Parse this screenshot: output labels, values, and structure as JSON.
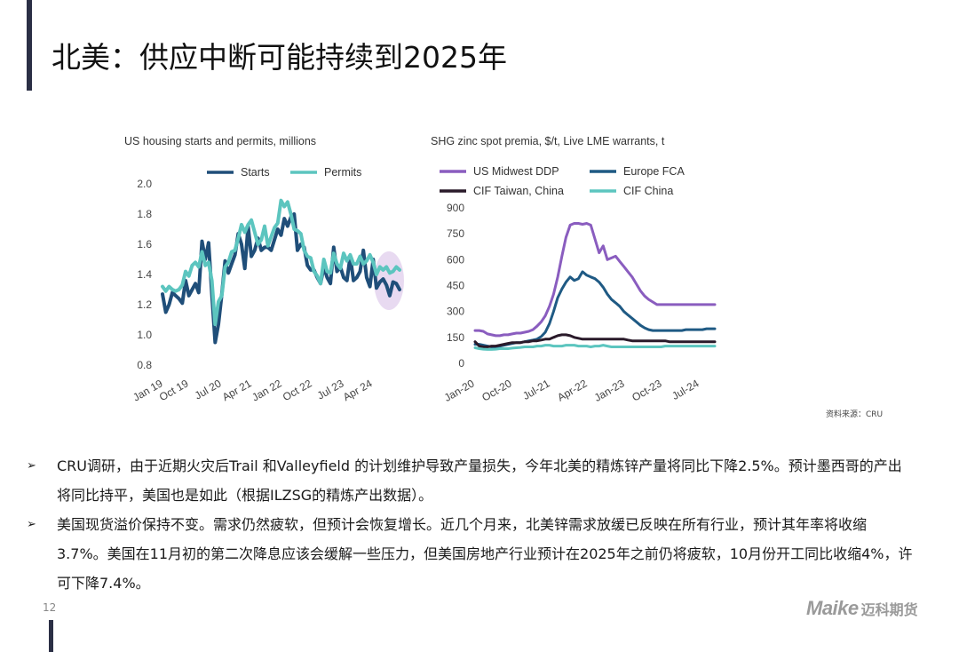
{
  "page": {
    "title": "北美：供应中断可能持续到2025年",
    "source": "资料来源：CRU",
    "page_number": "12",
    "logo": {
      "brand": "Maike",
      "brand_cn": "迈科期货"
    }
  },
  "bullets": [
    "CRU调研，由于近期火灾后Trail 和Valleyfield 的计划维护导致产量损失，今年北美的精炼锌产量将同比下降2.5%。预计墨西哥的产出将同比持平，美国也是如此（根据ILZSG的精炼产出数据）。",
    "美国现货溢价保持不变。需求仍然疲软，但预计会恢复增长。近几个月来，北美锌需求放缓已反映在所有行业，预计其年率将收缩3.7%。美国在11月初的第二次降息应该会缓解一些压力，但美国房地产行业预计在2025年之前仍将疲软，10月份开工同比收缩4%，许可下降7.4%。"
  ],
  "chart_data": [
    {
      "type": "line",
      "title": "US housing starts and permits, millions",
      "x_tick_labels": [
        "Jan 19",
        "Oct 19",
        "Jul 20",
        "Apr 21",
        "Jan 22",
        "Oct 22",
        "Jul 23",
        "Apr 24"
      ],
      "x_range": [
        0,
        72
      ],
      "y_tick_labels": [
        "2.0",
        "1.8",
        "1.6",
        "1.4",
        "1.2",
        "1.0",
        "0.8"
      ],
      "ylim": [
        0.8,
        2.0
      ],
      "legend_position": "top",
      "highlight_note": "recent months circled",
      "series": [
        {
          "name": "Starts",
          "color": "#1f4e79",
          "values": [
            1.27,
            1.15,
            1.2,
            1.28,
            1.26,
            1.24,
            1.21,
            1.36,
            1.26,
            1.3,
            1.34,
            1.28,
            1.62,
            1.5,
            1.61,
            1.27,
            0.95,
            1.07,
            1.27,
            1.49,
            1.41,
            1.47,
            1.53,
            1.67,
            1.6,
            1.44,
            1.72,
            1.52,
            1.56,
            1.64,
            1.56,
            1.58,
            1.58,
            1.56,
            1.63,
            1.7,
            1.66,
            1.77,
            1.72,
            1.78,
            1.8,
            1.56,
            1.6,
            1.58,
            1.46,
            1.43,
            1.43,
            1.38,
            1.34,
            1.45,
            1.38,
            1.34,
            1.58,
            1.42,
            1.45,
            1.38,
            1.36,
            1.52,
            1.36,
            1.38,
            1.42,
            1.56,
            1.38,
            1.32,
            1.5,
            1.31,
            1.35,
            1.37,
            1.33,
            1.26,
            1.35,
            1.34,
            1.3
          ]
        },
        {
          "name": "Permits",
          "color": "#5cc5bf",
          "values": [
            1.32,
            1.29,
            1.32,
            1.3,
            1.29,
            1.3,
            1.33,
            1.42,
            1.39,
            1.46,
            1.48,
            1.45,
            1.55,
            1.46,
            1.48,
            1.36,
            1.07,
            1.22,
            1.26,
            1.45,
            1.48,
            1.55,
            1.56,
            1.64,
            1.73,
            1.68,
            1.73,
            1.76,
            1.68,
            1.6,
            1.63,
            1.72,
            1.59,
            1.65,
            1.71,
            1.74,
            1.89,
            1.85,
            1.88,
            1.8,
            1.7,
            1.69,
            1.67,
            1.56,
            1.52,
            1.51,
            1.42,
            1.39,
            1.34,
            1.5,
            1.42,
            1.41,
            1.54,
            1.47,
            1.44,
            1.54,
            1.49,
            1.53,
            1.47,
            1.47,
            1.52,
            1.47,
            1.49,
            1.53,
            1.48,
            1.4,
            1.45,
            1.43,
            1.45,
            1.41,
            1.42,
            1.45,
            1.43
          ]
        }
      ]
    },
    {
      "type": "line",
      "title": "SHG zinc spot premia, $/t, Live LME warrants, t",
      "x_tick_labels": [
        "Jan-20",
        "Oct-20",
        "Jul-21",
        "Apr-22",
        "Jan-23",
        "Oct-23",
        "Jul-24"
      ],
      "x_range": [
        0,
        58
      ],
      "y_tick_labels": [
        "900",
        "750",
        "600",
        "450",
        "300",
        "150",
        "0"
      ],
      "ylim": [
        0,
        900
      ],
      "legend_position": "top",
      "series": [
        {
          "name": "US Midwest DDP",
          "color": "#8a5dbf",
          "values": [
            190,
            190,
            185,
            170,
            165,
            160,
            160,
            165,
            165,
            170,
            175,
            175,
            180,
            185,
            195,
            215,
            240,
            275,
            330,
            400,
            500,
            620,
            730,
            800,
            810,
            810,
            805,
            810,
            800,
            720,
            640,
            680,
            600,
            610,
            620,
            590,
            560,
            530,
            500,
            460,
            420,
            390,
            370,
            355,
            340,
            340,
            340,
            340,
            340,
            340,
            340,
            340,
            340,
            340,
            340,
            340,
            340,
            340,
            340
          ]
        },
        {
          "name": "Europe FCA",
          "color": "#1f5a84",
          "values": [
            110,
            110,
            105,
            100,
            95,
            95,
            100,
            105,
            110,
            115,
            120,
            120,
            125,
            130,
            135,
            140,
            155,
            180,
            230,
            300,
            380,
            430,
            470,
            500,
            480,
            490,
            530,
            510,
            500,
            490,
            470,
            440,
            400,
            370,
            350,
            330,
            300,
            280,
            260,
            240,
            220,
            205,
            195,
            190,
            190,
            190,
            190,
            190,
            190,
            190,
            190,
            195,
            195,
            195,
            195,
            195,
            200,
            200,
            200
          ]
        },
        {
          "name": "CIF Taiwan, China",
          "color": "#2a1a2a",
          "values": [
            125,
            100,
            95,
            95,
            100,
            100,
            105,
            110,
            115,
            120,
            120,
            120,
            125,
            125,
            130,
            130,
            135,
            140,
            140,
            150,
            160,
            165,
            165,
            160,
            150,
            145,
            140,
            140,
            140,
            140,
            140,
            140,
            140,
            140,
            140,
            140,
            140,
            135,
            130,
            130,
            130,
            130,
            130,
            130,
            130,
            130,
            130,
            125,
            125,
            125,
            125,
            125,
            125,
            125,
            125,
            125,
            125,
            125,
            125
          ]
        },
        {
          "name": "CIF China",
          "color": "#5cc5bf",
          "values": [
            90,
            85,
            82,
            80,
            80,
            82,
            85,
            85,
            85,
            88,
            90,
            92,
            95,
            95,
            95,
            100,
            100,
            105,
            105,
            100,
            100,
            100,
            105,
            105,
            105,
            100,
            100,
            100,
            95,
            100,
            100,
            105,
            100,
            95,
            95,
            95,
            95,
            95,
            95,
            95,
            95,
            95,
            95,
            95,
            95,
            95,
            100,
            100,
            100,
            100,
            100,
            100,
            100,
            100,
            100,
            100,
            100,
            100,
            100
          ]
        }
      ]
    }
  ]
}
